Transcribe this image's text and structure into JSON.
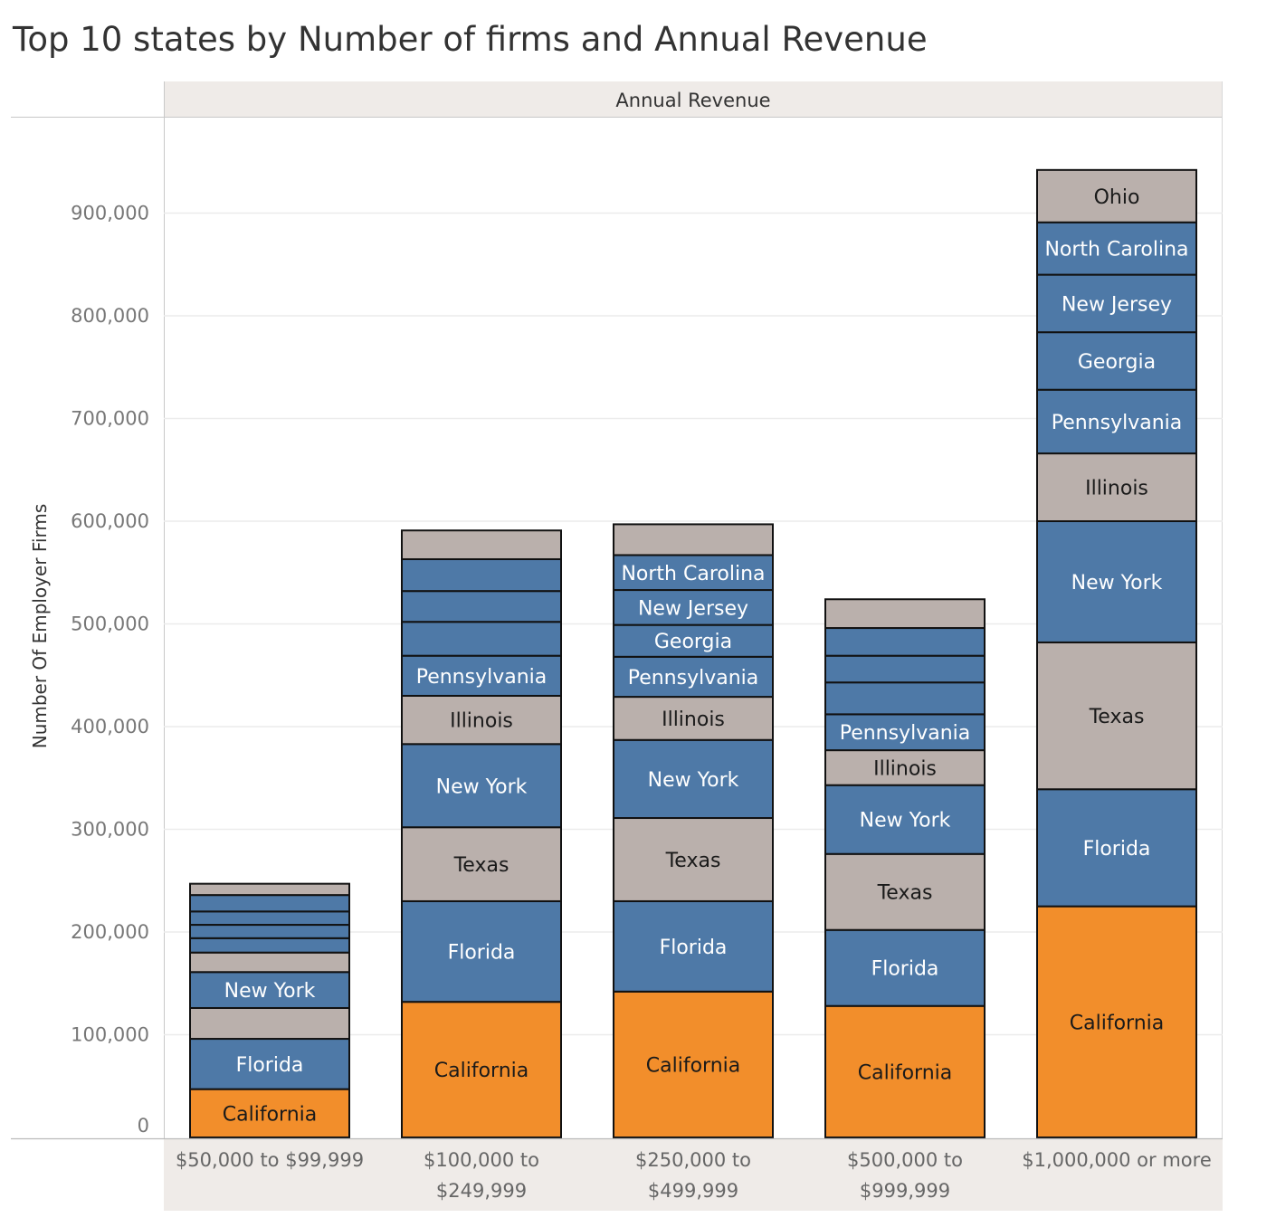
{
  "chart_data": {
    "type": "bar",
    "stacked": true,
    "title": "Top 10 states by Number of firms and Annual Revenue",
    "column_header": "Annual Revenue",
    "ylabel": "Number Of Employer Firms",
    "ylim": [
      0,
      950000
    ],
    "y_ticks": [
      0,
      100000,
      200000,
      300000,
      400000,
      500000,
      600000,
      700000,
      800000,
      900000
    ],
    "y_tick_labels": [
      "0",
      "100,000",
      "200,000",
      "300,000",
      "400,000",
      "500,000",
      "600,000",
      "700,000",
      "800,000",
      "900,000"
    ],
    "grid": true,
    "categories": [
      "$50,000 to $99,999",
      "$100,000 to $249,999",
      "$250,000 to $499,999",
      "$500,000 to $999,999",
      "$1,000,000 or more"
    ],
    "category_lines": [
      [
        "$50,000 to $99,999"
      ],
      [
        "$100,000 to",
        "$249,999"
      ],
      [
        "$250,000 to",
        "$499,999"
      ],
      [
        "$500,000 to",
        "$999,999"
      ],
      [
        "$1,000,000 or more"
      ]
    ],
    "colors": {
      "orange": "#f28e2b",
      "blue": "#4e79a7",
      "gray": "#bab0ac"
    },
    "series": [
      {
        "name": "California",
        "color": "orange",
        "values": [
          47000,
          132000,
          142000,
          128000,
          225000
        ],
        "labeled": [
          true,
          true,
          true,
          true,
          true
        ]
      },
      {
        "name": "Florida",
        "color": "blue",
        "values": [
          49000,
          98000,
          88000,
          74000,
          114000
        ],
        "labeled": [
          true,
          true,
          true,
          true,
          true
        ]
      },
      {
        "name": "Texas",
        "color": "gray",
        "values": [
          30000,
          72000,
          81000,
          74000,
          143000
        ],
        "labeled": [
          false,
          true,
          true,
          true,
          true
        ]
      },
      {
        "name": "New York",
        "color": "blue",
        "values": [
          35000,
          81000,
          76000,
          67000,
          118000
        ],
        "labeled": [
          true,
          true,
          true,
          true,
          true
        ]
      },
      {
        "name": "Illinois",
        "color": "gray",
        "values": [
          19000,
          47000,
          42000,
          34000,
          66000
        ],
        "labeled": [
          false,
          true,
          true,
          true,
          true
        ]
      },
      {
        "name": "Pennsylvania",
        "color": "blue",
        "values": [
          14000,
          39000,
          39000,
          35000,
          62000
        ],
        "labeled": [
          false,
          true,
          true,
          true,
          true
        ]
      },
      {
        "name": "Georgia",
        "color": "blue",
        "values": [
          13000,
          33000,
          31000,
          31000,
          56000
        ],
        "labeled": [
          false,
          false,
          true,
          false,
          true
        ]
      },
      {
        "name": "New Jersey",
        "color": "blue",
        "values": [
          13000,
          30000,
          34000,
          26000,
          56000
        ],
        "labeled": [
          false,
          false,
          true,
          false,
          true
        ]
      },
      {
        "name": "North Carolina",
        "color": "blue",
        "values": [
          16000,
          31000,
          34000,
          27000,
          51000
        ],
        "labeled": [
          false,
          false,
          true,
          false,
          true
        ]
      },
      {
        "name": "Ohio",
        "color": "gray",
        "values": [
          11000,
          28000,
          30000,
          28000,
          51000
        ],
        "labeled": [
          false,
          false,
          false,
          false,
          true
        ]
      }
    ]
  }
}
